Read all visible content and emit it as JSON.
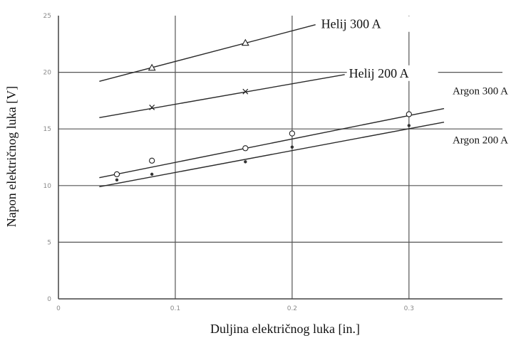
{
  "chart_data": {
    "type": "line",
    "xlabel": "Duljina električnog luka [in.]",
    "ylabel": "Napon električnog luka [V]",
    "xlim": [
      0,
      0.38
    ],
    "ylim": [
      0,
      25
    ],
    "x_ticks": [
      "0",
      "0.1",
      "0.2",
      "0.3"
    ],
    "y_ticks": [
      "0",
      "5",
      "10",
      "15",
      "20",
      "25"
    ],
    "grid": true,
    "series": [
      {
        "name": "Helij 300 A",
        "marker": "triangle",
        "points": [
          {
            "x": 0.08,
            "y": 20.4
          },
          {
            "x": 0.16,
            "y": 22.6
          }
        ],
        "fit": {
          "x": [
            0.035,
            0.22
          ],
          "y": [
            19.2,
            24.2
          ]
        }
      },
      {
        "name": "Helij 200 A",
        "marker": "x",
        "points": [
          {
            "x": 0.08,
            "y": 16.9
          },
          {
            "x": 0.16,
            "y": 18.3
          }
        ],
        "fit": {
          "x": [
            0.035,
            0.245
          ],
          "y": [
            16.0,
            19.8
          ]
        }
      },
      {
        "name": "Argon 300 A",
        "marker": "circle",
        "points": [
          {
            "x": 0.05,
            "y": 11.0
          },
          {
            "x": 0.08,
            "y": 12.2
          },
          {
            "x": 0.16,
            "y": 13.3
          },
          {
            "x": 0.2,
            "y": 14.6
          },
          {
            "x": 0.3,
            "y": 16.3
          }
        ],
        "fit": {
          "x": [
            0.035,
            0.33
          ],
          "y": [
            10.7,
            16.8
          ]
        }
      },
      {
        "name": "Argon 200 A",
        "marker": "dot",
        "points": [
          {
            "x": 0.05,
            "y": 10.5
          },
          {
            "x": 0.08,
            "y": 11.0
          },
          {
            "x": 0.16,
            "y": 12.1
          },
          {
            "x": 0.2,
            "y": 13.4
          },
          {
            "x": 0.3,
            "y": 15.3
          }
        ],
        "fit": {
          "x": [
            0.035,
            0.33
          ],
          "y": [
            9.9,
            15.6
          ]
        }
      }
    ]
  }
}
